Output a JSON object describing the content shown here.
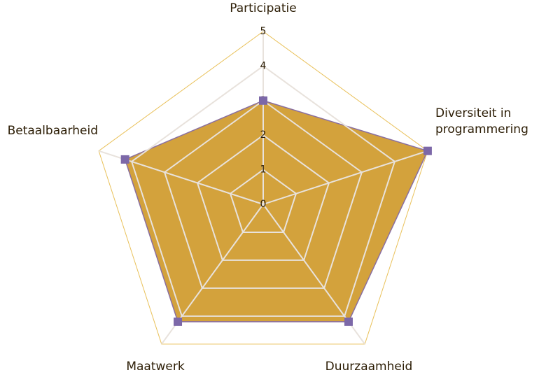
{
  "chart_data": {
    "type": "radar",
    "categories": [
      "Participatie",
      "Diversiteit in programmering",
      "Duurzaamheid",
      "Maatwerk",
      "Betaalbaarheid"
    ],
    "values": [
      3,
      5,
      4.2,
      4.2,
      4.2
    ],
    "color": "#d3a23c",
    "line_color": "#8a6fa0",
    "marker_color": "#7c68a8",
    "ylim": [
      0,
      5
    ],
    "yticks": [
      0,
      1,
      2,
      3,
      4,
      5
    ],
    "grid": true
  }
}
